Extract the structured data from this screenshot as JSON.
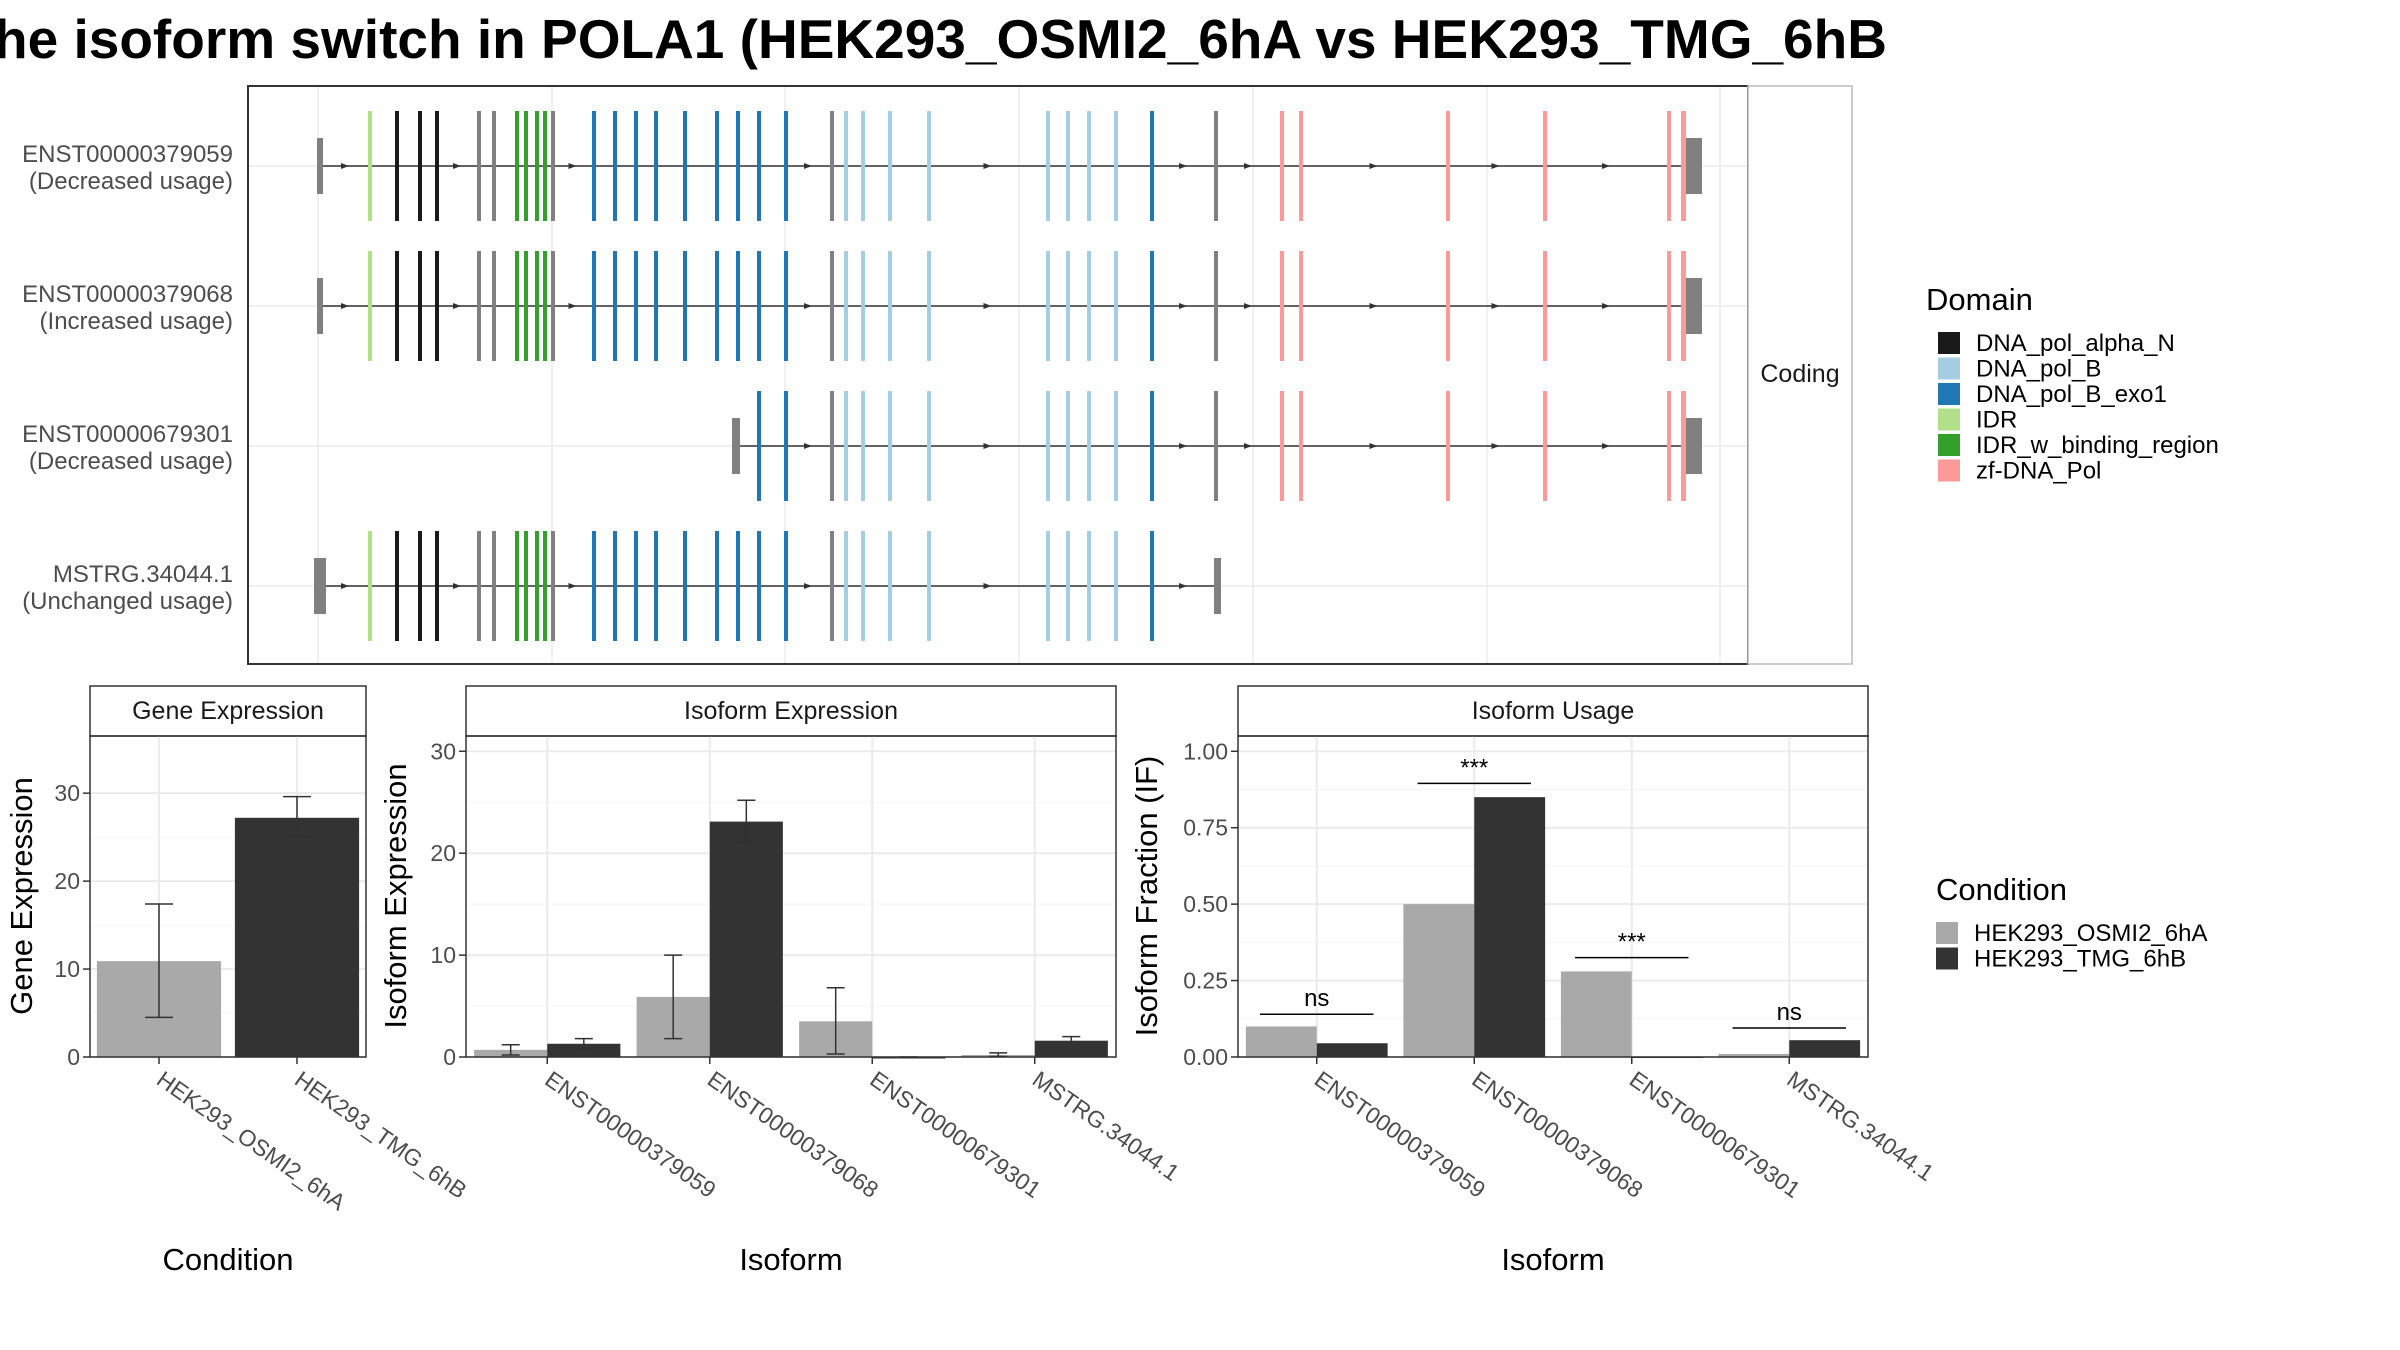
{
  "title": "he isoform switch in POLA1 (HEK293_OSMI2_6hA vs HEK293_TMG_6hB",
  "colors": {
    "DNA_pol_alpha_N": "#1a1a1a",
    "DNA_pol_B": "#a6cee3",
    "DNA_pol_B_exo1": "#1f78b4",
    "IDR": "#b2df8a",
    "IDR_w_binding_region": "#33a02c",
    "zf-DNA_Pol": "#fb9a99",
    "noncoding_exon": "#808080",
    "HEK293_OSMI2_6hA": "#a9a9a9",
    "HEK293_TMG_6hB": "#333333",
    "panel_border": "#333333",
    "grid": "#ebebeb",
    "strip_bg": "#ffffff"
  },
  "structure": {
    "strip_label": "Coding",
    "transcripts": [
      {
        "id": "ENST00000379059",
        "usage": "(Decreased usage)",
        "start_exon": 0,
        "end_exon": 37
      },
      {
        "id": "ENST00000379068",
        "usage": "(Increased usage)",
        "start_exon": 0,
        "end_exon": 37
      },
      {
        "id": "ENST00000679301",
        "usage": "(Decreased usage)",
        "start_exon": 18,
        "end_exon": 37
      },
      {
        "id": "MSTRG.34044.1",
        "usage": "(Unchanged usage)",
        "start_exon": 0,
        "end_exon": 31
      }
    ],
    "exon_domains": [
      "noncoding_exon",
      "IDR",
      "DNA_pol_alpha_N",
      "DNA_pol_alpha_N",
      "DNA_pol_alpha_N",
      "noncoding_exon",
      "noncoding_exon",
      "IDR_w_binding_region",
      "IDR_w_binding_region",
      "IDR_w_binding_region",
      "IDR_w_binding_region",
      "noncoding_exon",
      "DNA_pol_B_exo1",
      "DNA_pol_B_exo1",
      "DNA_pol_B_exo1",
      "DNA_pol_B_exo1",
      "DNA_pol_B_exo1",
      "DNA_pol_B_exo1",
      "DNA_pol_B_exo1",
      "DNA_pol_B_exo1",
      "DNA_pol_B_exo1",
      "noncoding_exon",
      "DNA_pol_B",
      "DNA_pol_B",
      "DNA_pol_B",
      "DNA_pol_B",
      "DNA_pol_B",
      "DNA_pol_B",
      "DNA_pol_B",
      "DNA_pol_B",
      "DNA_pol_B_exo1",
      "noncoding_exon",
      "zf-DNA_Pol",
      "zf-DNA_Pol",
      "zf-DNA_Pol",
      "zf-DNA_Pol",
      "zf-DNA_Pol",
      "noncoding_exon"
    ]
  },
  "legend_domain": {
    "title": "Domain",
    "entries": [
      "DNA_pol_alpha_N",
      "DNA_pol_B",
      "DNA_pol_B_exo1",
      "IDR",
      "IDR_w_binding_region",
      "zf-DNA_Pol"
    ]
  },
  "legend_condition": {
    "title": "Condition",
    "entries": [
      "HEK293_OSMI2_6hA",
      "HEK293_TMG_6hB"
    ]
  },
  "chart_data": [
    {
      "type": "bar",
      "title": "Gene Expression",
      "xlabel": "Condition",
      "ylabel": "Gene Expression",
      "ylim": [
        0,
        36.5
      ],
      "yticks": [
        "0",
        "10",
        "20",
        "30"
      ],
      "categories": [
        "HEK293_OSMI2_6hA",
        "HEK293_TMG_6hB"
      ],
      "values": [
        10.9,
        27.2
      ],
      "error_low": [
        4.5,
        25.0
      ],
      "error_high": [
        17.4,
        29.6
      ]
    },
    {
      "type": "bar",
      "title": "Isoform Expression",
      "xlabel": "Isoform",
      "ylabel": "Isoform Expression",
      "ylim": [
        0,
        31.5
      ],
      "yticks": [
        "0",
        "10",
        "20",
        "30"
      ],
      "categories": [
        "ENST00000379059",
        "ENST00000379068",
        "ENST00000679301",
        "MSTRG.34044.1"
      ],
      "series": [
        {
          "name": "HEK293_OSMI2_6hA",
          "values": [
            0.7,
            5.9,
            3.5,
            0.2
          ],
          "error_low": [
            0.2,
            1.8,
            0.3,
            0.05
          ],
          "error_high": [
            1.2,
            10.0,
            6.8,
            0.4
          ]
        },
        {
          "name": "HEK293_TMG_6hB",
          "values": [
            1.3,
            23.1,
            0.0,
            1.6
          ],
          "error_low": [
            0.8,
            21.1,
            0.0,
            1.2
          ],
          "error_high": [
            1.8,
            25.2,
            0.0,
            2.0
          ]
        }
      ]
    },
    {
      "type": "bar",
      "title": "Isoform Usage",
      "xlabel": "Isoform",
      "ylabel": "Isoform Fraction (IF)",
      "ylim": [
        0,
        1.05
      ],
      "yticks": [
        "0.00",
        "0.25",
        "0.50",
        "0.75",
        "1.00"
      ],
      "categories": [
        "ENST00000379059",
        "ENST00000379068",
        "ENST00000679301",
        "MSTRG.34044.1"
      ],
      "series": [
        {
          "name": "HEK293_OSMI2_6hA",
          "values": [
            0.1,
            0.5,
            0.28,
            0.01
          ]
        },
        {
          "name": "HEK293_TMG_6hB",
          "values": [
            0.045,
            0.85,
            0.0,
            0.055
          ]
        }
      ],
      "significance": [
        {
          "label": "ns",
          "level": 0.14
        },
        {
          "label": "***",
          "level": 0.895
        },
        {
          "label": "***",
          "level": 0.325
        },
        {
          "label": "ns",
          "level": 0.095
        }
      ]
    }
  ]
}
